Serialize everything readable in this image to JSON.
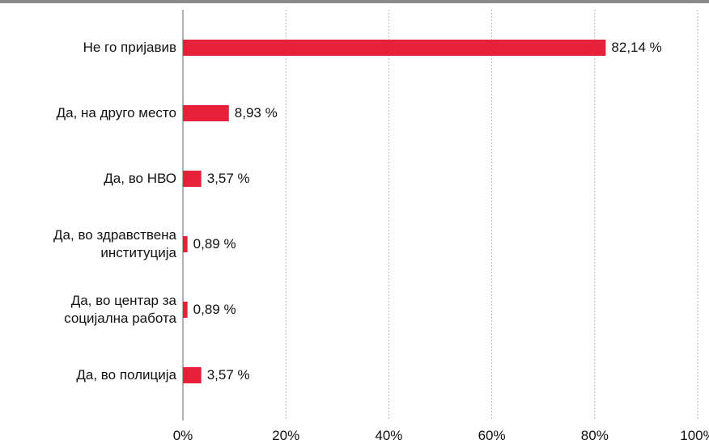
{
  "chart_data": {
    "type": "bar",
    "orientation": "horizontal",
    "categories": [
      "Не го пријавив",
      "Да, на друго место",
      "Да, во НВО",
      "Да, во здравствена\nинституција",
      "Да, во центар за\nсоцијална работа",
      "Да, во полиција"
    ],
    "values": [
      82.14,
      8.93,
      3.57,
      0.89,
      0.89,
      3.57
    ],
    "value_labels": [
      "82,14 %",
      "8,93 %",
      "3,57 %",
      "0,89 %",
      "0,89 %",
      "3,57 %"
    ],
    "color": "#e8213b",
    "xlim": [
      0,
      100
    ],
    "xticks": [
      {
        "value": 0,
        "label": "0%"
      },
      {
        "value": 20,
        "label": "20%"
      },
      {
        "value": 40,
        "label": "40%"
      },
      {
        "value": 60,
        "label": "60%"
      },
      {
        "value": 80,
        "label": "80%"
      },
      {
        "value": 100,
        "label": "100%"
      }
    ],
    "grid": true
  }
}
